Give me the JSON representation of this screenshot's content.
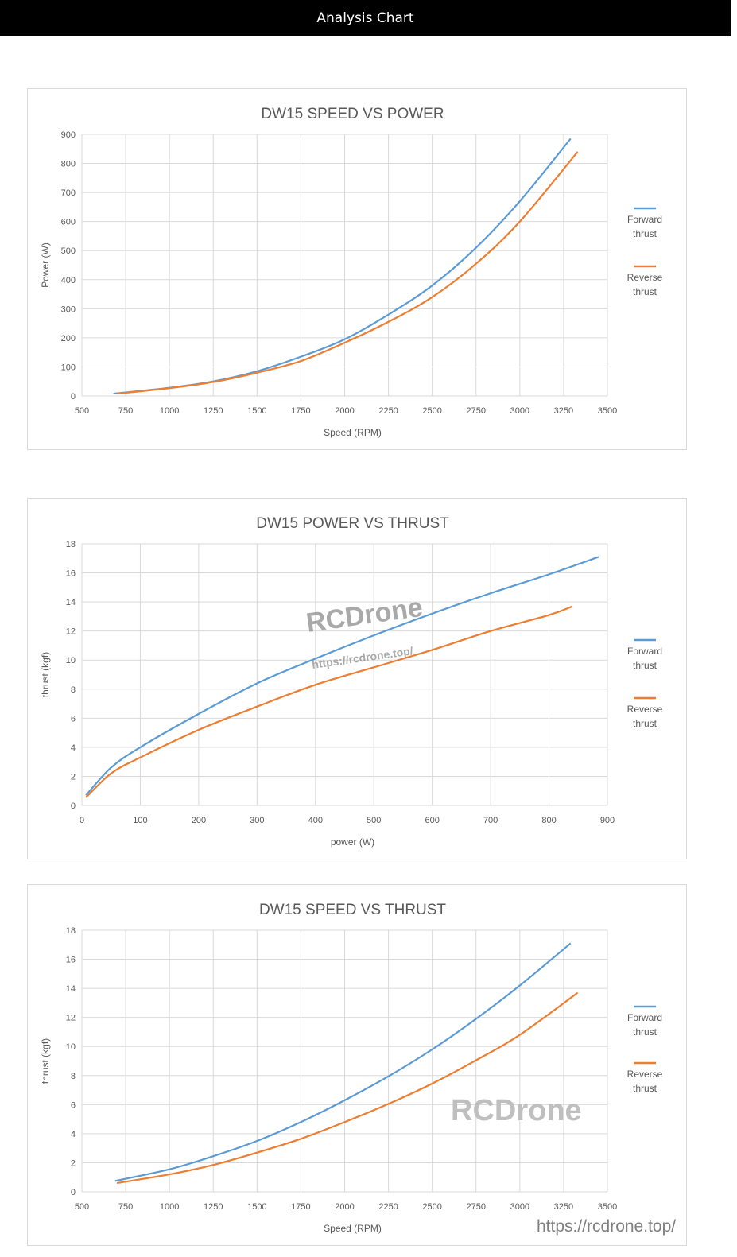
{
  "header": {
    "title": "Analysis Chart"
  },
  "colors": {
    "forward": "#5b9bd5",
    "reverse": "#ed7d31",
    "grid": "#d9d9d9",
    "text": "#595959"
  },
  "watermarks": {
    "brand": "RCDrone",
    "url": "https://rcdrone.top/"
  },
  "chart_data": [
    {
      "type": "line",
      "title": "DW15 SPEED VS POWER",
      "xlabel": "Speed (RPM)",
      "ylabel": "Power (W)",
      "xlim": [
        500,
        3500
      ],
      "ylim": [
        0,
        900
      ],
      "xticks": [
        500,
        750,
        1000,
        1250,
        1500,
        1750,
        2000,
        2250,
        2500,
        2750,
        3000,
        3250,
        3500
      ],
      "yticks": [
        0,
        100,
        200,
        300,
        400,
        500,
        600,
        700,
        800,
        900
      ],
      "grid": true,
      "legend": "right",
      "series": [
        {
          "name": "Forward thrust",
          "x": [
            680,
            1000,
            1250,
            1500,
            1750,
            2000,
            2250,
            2500,
            2750,
            3000,
            3290
          ],
          "y": [
            8,
            28,
            50,
            85,
            135,
            195,
            280,
            380,
            510,
            670,
            885
          ]
        },
        {
          "name": "Reverse thrust",
          "x": [
            700,
            1000,
            1250,
            1500,
            1750,
            2000,
            2250,
            2500,
            2750,
            3000,
            3330
          ],
          "y": [
            8,
            27,
            48,
            80,
            120,
            183,
            255,
            340,
            455,
            600,
            840
          ]
        }
      ]
    },
    {
      "type": "line",
      "title": "DW15 POWER VS THRUST",
      "xlabel": "power (W)",
      "ylabel": "thrust (kgf)",
      "xlim": [
        0,
        900
      ],
      "ylim": [
        0,
        18
      ],
      "xticks": [
        0,
        100,
        200,
        300,
        400,
        500,
        600,
        700,
        800,
        900
      ],
      "yticks": [
        0,
        2,
        4,
        6,
        8,
        10,
        12,
        14,
        16,
        18
      ],
      "grid": true,
      "legend": "right",
      "series": [
        {
          "name": "Forward thrust",
          "x": [
            7,
            50,
            100,
            200,
            300,
            400,
            500,
            600,
            700,
            800,
            885
          ],
          "y": [
            0.7,
            2.6,
            4.0,
            6.3,
            8.4,
            10.1,
            11.7,
            13.2,
            14.6,
            15.9,
            17.1
          ]
        },
        {
          "name": "Reverse thrust",
          "x": [
            7,
            50,
            100,
            200,
            300,
            400,
            500,
            600,
            700,
            800,
            840
          ],
          "y": [
            0.55,
            2.2,
            3.3,
            5.2,
            6.8,
            8.3,
            9.5,
            10.7,
            12.0,
            13.1,
            13.7
          ]
        }
      ]
    },
    {
      "type": "line",
      "title": "DW15 SPEED VS THRUST",
      "xlabel": "Speed (RPM)",
      "ylabel": "thrust (kgf)",
      "xlim": [
        500,
        3500
      ],
      "ylim": [
        0,
        18
      ],
      "xticks": [
        500,
        750,
        1000,
        1250,
        1500,
        1750,
        2000,
        2250,
        2500,
        2750,
        3000,
        3250,
        3500
      ],
      "yticks": [
        0,
        2,
        4,
        6,
        8,
        10,
        12,
        14,
        16,
        18
      ],
      "grid": true,
      "legend": "right",
      "series": [
        {
          "name": "Forward thrust",
          "x": [
            690,
            1000,
            1250,
            1500,
            1750,
            2000,
            2250,
            2500,
            2750,
            3000,
            3290
          ],
          "y": [
            0.75,
            1.55,
            2.45,
            3.5,
            4.8,
            6.3,
            7.95,
            9.8,
            11.9,
            14.2,
            17.1
          ]
        },
        {
          "name": "Reverse thrust",
          "x": [
            700,
            1000,
            1250,
            1500,
            1750,
            2000,
            2250,
            2500,
            2750,
            3000,
            3330
          ],
          "y": [
            0.6,
            1.2,
            1.85,
            2.7,
            3.65,
            4.8,
            6.05,
            7.45,
            9.05,
            10.8,
            13.7
          ]
        }
      ]
    }
  ]
}
